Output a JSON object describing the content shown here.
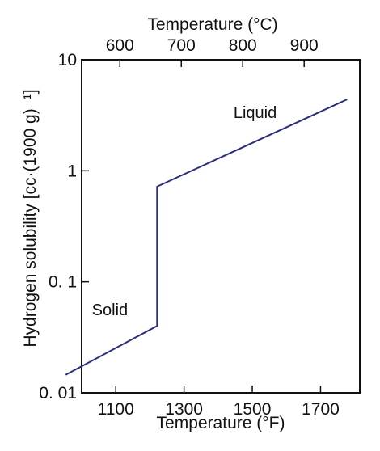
{
  "chart_data": {
    "type": "line",
    "yscale": "log",
    "ylim": [
      0.01,
      10
    ],
    "xlim_F": [
      1000,
      1815
    ],
    "xlabel": "Temperature (°F)",
    "x2label": "Temperature (°C)",
    "ylabel": "Hydrogen solubility [cc·(1900 g)⁻¹]",
    "bottom_ticks": [
      {
        "value": 1100,
        "label": "1100"
      },
      {
        "value": 1300,
        "label": "1300"
      },
      {
        "value": 1500,
        "label": "1500"
      },
      {
        "value": 1700,
        "label": "1700"
      }
    ],
    "top_ticks": [
      {
        "value": 600,
        "label": "600"
      },
      {
        "value": 700,
        "label": "700"
      },
      {
        "value": 800,
        "label": "800"
      },
      {
        "value": 900,
        "label": "900"
      }
    ],
    "y_ticks": [
      {
        "value": 10,
        "label": "10"
      },
      {
        "value": 1,
        "label": "1"
      },
      {
        "value": 0.1,
        "label": "0. 1"
      },
      {
        "value": 0.01,
        "label": "0. 01"
      }
    ],
    "series": [
      {
        "x": [
          953,
          1221,
          1221,
          1778
        ],
        "y": [
          0.0145,
          0.04,
          0.72,
          4.4
        ]
      }
    ],
    "annotations": [
      {
        "text": "Liquid",
        "x": 1445,
        "y": 3.0
      },
      {
        "text": "Solid",
        "x": 1030,
        "y": 0.05
      }
    ],
    "line_color": "#2b2e7a",
    "axis_color": "#111111",
    "grid": false
  }
}
